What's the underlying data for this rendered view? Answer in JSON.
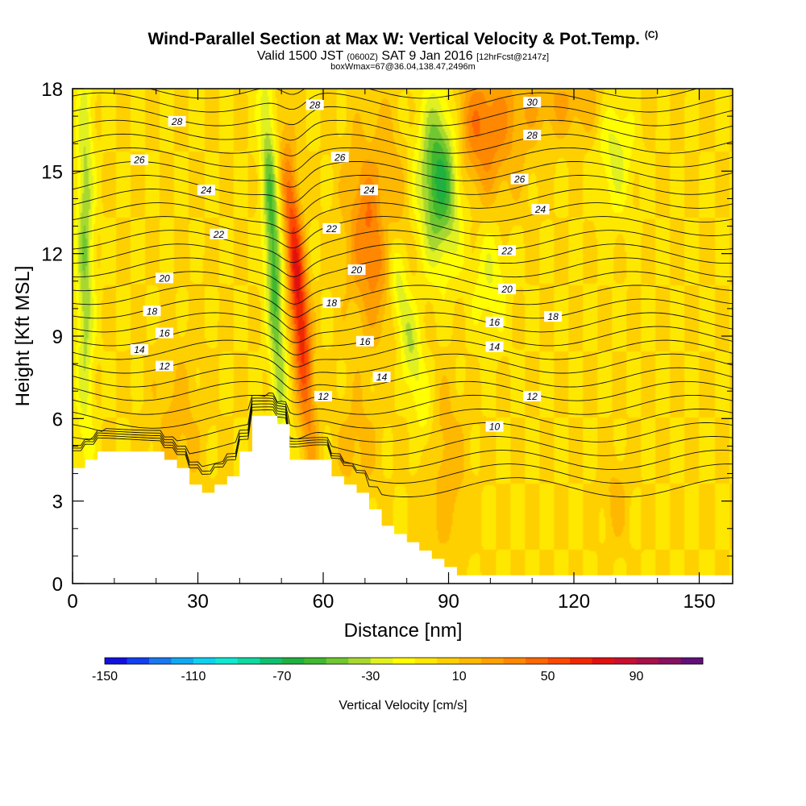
{
  "header": {
    "title": "Wind-Parallel Section at Max W: Vertical Velocity & Pot.Temp.",
    "title_mark": "(C)",
    "valid_prefix": "Valid 1500 JST",
    "valid_utc": "(0600Z)",
    "valid_date": "SAT 9 Jan 2016",
    "forecast_info": "[12hrFcst@2147z]",
    "box_info": "boxWmax=67@36.04,138.47,2496m"
  },
  "chart_data": {
    "type": "heatmap",
    "xlabel": "Distance [nm]",
    "ylabel": "Height [Kft MSL]",
    "xlim": [
      0,
      158
    ],
    "ylim": [
      0,
      18
    ],
    "x_ticks": [
      0,
      30,
      60,
      90,
      120,
      150
    ],
    "y_ticks": [
      0,
      3,
      6,
      9,
      12,
      15,
      18
    ],
    "colorbar": {
      "label": "Vertical Velocity [cm/s]",
      "tick_labels": [
        -150,
        -110,
        -70,
        -30,
        10,
        50,
        90
      ],
      "min": -150,
      "step": 10,
      "colors": [
        "#1010e0",
        "#1040f0",
        "#1878f0",
        "#10a8f0",
        "#10d0f0",
        "#10e8d0",
        "#10d8a0",
        "#10c070",
        "#20b040",
        "#40b830",
        "#70c830",
        "#a8d830",
        "#e0f020",
        "#ffff00",
        "#ffe800",
        "#ffd000",
        "#ffb800",
        "#ffa000",
        "#ff8800",
        "#ff6800",
        "#ff4800",
        "#f02800",
        "#e01010",
        "#c81030",
        "#a81048",
        "#881060",
        "#601078"
      ]
    },
    "terrain": [
      [
        0,
        4.2
      ],
      [
        3,
        4.2
      ],
      [
        3,
        4.5
      ],
      [
        6,
        4.5
      ],
      [
        6,
        4.8
      ],
      [
        22,
        4.8
      ],
      [
        22,
        4.5
      ],
      [
        25,
        4.5
      ],
      [
        25,
        4.2
      ],
      [
        28,
        4.2
      ],
      [
        28,
        3.6
      ],
      [
        31,
        3.6
      ],
      [
        31,
        3.3
      ],
      [
        34,
        3.3
      ],
      [
        34,
        3.6
      ],
      [
        37,
        3.6
      ],
      [
        37,
        3.9
      ],
      [
        40,
        3.9
      ],
      [
        40,
        4.8
      ],
      [
        43,
        4.8
      ],
      [
        43,
        6.1
      ],
      [
        49,
        6.1
      ],
      [
        49,
        5.8
      ],
      [
        52,
        5.8
      ],
      [
        52,
        4.5
      ],
      [
        62,
        4.5
      ],
      [
        62,
        3.9
      ],
      [
        65,
        3.9
      ],
      [
        65,
        3.6
      ],
      [
        68,
        3.6
      ],
      [
        68,
        3.3
      ],
      [
        71,
        3.3
      ],
      [
        71,
        2.7
      ],
      [
        74,
        2.7
      ],
      [
        74,
        2.1
      ],
      [
        77,
        2.1
      ],
      [
        77,
        1.8
      ],
      [
        80,
        1.8
      ],
      [
        80,
        1.5
      ],
      [
        83,
        1.5
      ],
      [
        83,
        1.2
      ],
      [
        86,
        1.2
      ],
      [
        86,
        0.9
      ],
      [
        89,
        0.9
      ],
      [
        89,
        0.6
      ],
      [
        92,
        0.6
      ],
      [
        92,
        0.3
      ],
      [
        158,
        0.3
      ]
    ],
    "vv_features": [
      {
        "x": 54,
        "y": 10.5,
        "sx": 2.2,
        "sy": 5.0,
        "w": 75,
        "tilt": -0.5
      },
      {
        "x": 48,
        "y": 12,
        "sx": 2.0,
        "sy": 6.5,
        "w": -55,
        "tilt": -0.3
      },
      {
        "x": 72,
        "y": 13,
        "sx": 6.0,
        "sy": 3.5,
        "w": 45,
        "tilt": 0
      },
      {
        "x": 88,
        "y": 15,
        "sx": 5.0,
        "sy": 3.0,
        "w": -75,
        "tilt": 0
      },
      {
        "x": 79,
        "y": 10,
        "sx": 2.5,
        "sy": 5.0,
        "w": -35,
        "tilt": -1.3
      },
      {
        "x": 97,
        "y": 16.5,
        "sx": 10.0,
        "sy": 2.5,
        "w": 40,
        "tilt": 0
      },
      {
        "x": 118,
        "y": 17.5,
        "sx": 12.0,
        "sy": 1.2,
        "w": 20,
        "tilt": 0
      },
      {
        "x": 3,
        "y": 12,
        "sx": 2.0,
        "sy": 7.0,
        "w": -40,
        "tilt": 0
      },
      {
        "x": 130,
        "y": 16,
        "sx": 4.0,
        "sy": 2.5,
        "w": -25,
        "tilt": 0
      },
      {
        "x": 100,
        "y": 11,
        "sx": 4.0,
        "sy": 2.0,
        "w": -20,
        "tilt": 0
      },
      {
        "x": 25,
        "y": 5.5,
        "sx": 6.0,
        "sy": 3.0,
        "w": 15,
        "tilt": 0
      },
      {
        "x": 68,
        "y": 5,
        "sx": 5.0,
        "sy": 2.0,
        "w": 15,
        "tilt": 0
      },
      {
        "x": 89,
        "y": 4,
        "sx": 5.0,
        "sy": 3.0,
        "w": 20,
        "tilt": 0
      },
      {
        "x": 130,
        "y": 3,
        "sx": 3.0,
        "sy": 1.5,
        "w": 15,
        "tilt": 0
      }
    ],
    "contour_labels": [
      {
        "x": 25,
        "y": 16.8,
        "text": "28"
      },
      {
        "x": 58,
        "y": 17.4,
        "text": "28"
      },
      {
        "x": 110,
        "y": 17.5,
        "text": "30"
      },
      {
        "x": 110,
        "y": 16.3,
        "text": "28"
      },
      {
        "x": 16,
        "y": 15.4,
        "text": "26"
      },
      {
        "x": 64,
        "y": 15.5,
        "text": "26"
      },
      {
        "x": 107,
        "y": 14.7,
        "text": "26"
      },
      {
        "x": 32,
        "y": 14.3,
        "text": "24"
      },
      {
        "x": 71,
        "y": 14.3,
        "text": "24"
      },
      {
        "x": 112,
        "y": 13.6,
        "text": "24"
      },
      {
        "x": 35,
        "y": 12.7,
        "text": "22"
      },
      {
        "x": 62,
        "y": 12.9,
        "text": "22"
      },
      {
        "x": 104,
        "y": 12.1,
        "text": "22"
      },
      {
        "x": 22,
        "y": 11.1,
        "text": "20"
      },
      {
        "x": 68,
        "y": 11.4,
        "text": "20"
      },
      {
        "x": 104,
        "y": 10.7,
        "text": "20"
      },
      {
        "x": 19,
        "y": 9.9,
        "text": "18"
      },
      {
        "x": 62,
        "y": 10.2,
        "text": "18"
      },
      {
        "x": 115,
        "y": 9.7,
        "text": "18"
      },
      {
        "x": 22,
        "y": 9.1,
        "text": "16"
      },
      {
        "x": 70,
        "y": 8.8,
        "text": "16"
      },
      {
        "x": 101,
        "y": 9.5,
        "text": "16"
      },
      {
        "x": 16,
        "y": 8.5,
        "text": "14"
      },
      {
        "x": 74,
        "y": 7.5,
        "text": "14"
      },
      {
        "x": 101,
        "y": 8.6,
        "text": "14"
      },
      {
        "x": 22,
        "y": 7.9,
        "text": "12"
      },
      {
        "x": 60,
        "y": 6.8,
        "text": "12"
      },
      {
        "x": 110,
        "y": 6.8,
        "text": "12"
      },
      {
        "x": 101,
        "y": 5.7,
        "text": "10"
      }
    ]
  }
}
